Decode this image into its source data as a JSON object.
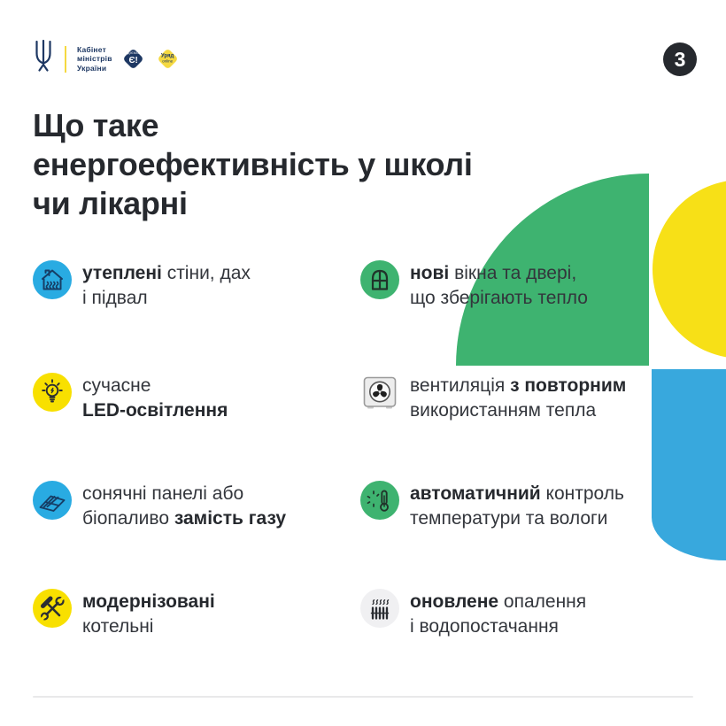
{
  "colors": {
    "green": "#3eb370",
    "yellow": "#f7e017",
    "blue": "#38a8dd",
    "icon_blue": "#29abe2",
    "icon_yellow": "#f8e000",
    "dark_text": "#26292e",
    "navy": "#1e3863",
    "badge_yellow": "#f5d941",
    "divider": "#e9e9ea"
  },
  "header": {
    "org_lines": [
      "Кабінет",
      "міністрів",
      "України"
    ],
    "diia_diamond": {
      "top": "ДІЄМО",
      "main": "Є!"
    },
    "uryad_diamond": {
      "top": "Уряд",
      "bottom": "online"
    },
    "page_number": "3"
  },
  "title": {
    "lines": [
      "Що таке",
      "енергоефективність у школі",
      "чи лікарні"
    ]
  },
  "items": [
    {
      "icon": "insulated-house-icon",
      "line1": [
        {
          "t": "утеплені",
          "b": true
        },
        {
          "t": " стіни, дах",
          "b": false
        }
      ],
      "line2": [
        {
          "t": "і підвал",
          "b": false
        }
      ]
    },
    {
      "icon": "new-window-icon",
      "line1": [
        {
          "t": "нові",
          "b": true
        },
        {
          "t": " вікна та двері,",
          "b": false
        }
      ],
      "line2": [
        {
          "t": "що зберігають тепло",
          "b": false
        }
      ]
    },
    {
      "icon": "led-bulb-icon",
      "line1": [
        {
          "t": "сучасне",
          "b": false
        }
      ],
      "line2": [
        {
          "t": "LED-освітлення",
          "b": true
        }
      ]
    },
    {
      "icon": "ventilation-fan-icon",
      "line1": [
        {
          "t": "вентиляція ",
          "b": false
        },
        {
          "t": "з повторним",
          "b": true
        }
      ],
      "line2": [
        {
          "t": "використанням тепла",
          "b": false
        }
      ]
    },
    {
      "icon": "solar-panel-icon",
      "line1": [
        {
          "t": "сонячні панелі або",
          "b": false
        }
      ],
      "line2": [
        {
          "t": "біопаливо ",
          "b": false
        },
        {
          "t": "замість газу",
          "b": true
        }
      ]
    },
    {
      "icon": "climate-control-icon",
      "line1": [
        {
          "t": "автоматичний",
          "b": true
        },
        {
          "t": " контроль",
          "b": false
        }
      ],
      "line2": [
        {
          "t": "температури та вологи",
          "b": false
        }
      ]
    },
    {
      "icon": "tools-icon",
      "line1": [
        {
          "t": "модернізовані",
          "b": true
        }
      ],
      "line2": [
        {
          "t": "котельні",
          "b": false
        }
      ]
    },
    {
      "icon": "radiator-icon",
      "line1": [
        {
          "t": "оновлене",
          "b": true
        },
        {
          "t": " опалення",
          "b": false
        }
      ],
      "line2": [
        {
          "t": "і водопостачання",
          "b": false
        }
      ]
    }
  ]
}
